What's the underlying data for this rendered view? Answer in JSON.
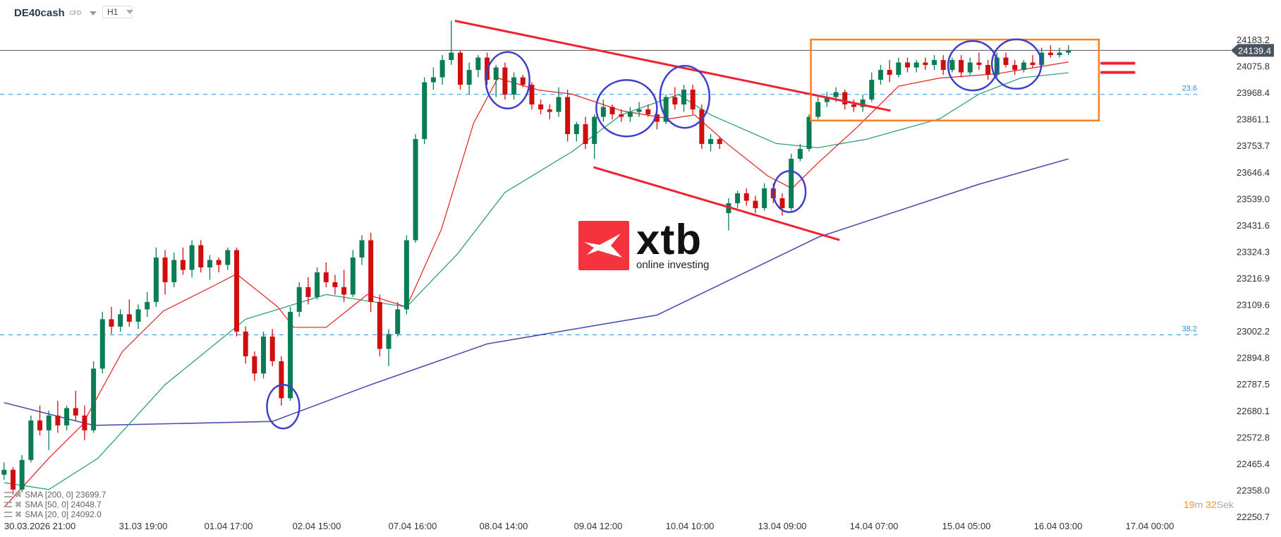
{
  "header": {
    "symbol": "DE40cash",
    "instrument_type": "CFD",
    "timeframe": "H1"
  },
  "legend": [
    {
      "label": "SMA [200, 0] 23699.7",
      "color": "#4a50b0"
    },
    {
      "label": "SMA [50, 0] 24048.7",
      "color": "#1f9a6e"
    },
    {
      "label": "SMA [20, 0] 24092.0",
      "color": "#e02020"
    }
  ],
  "timer": {
    "minutes": "19",
    "m_unit": "m",
    "seconds": "32",
    "s_unit": "Sek"
  },
  "logo": {
    "brand": "xtb",
    "tagline": "online investing"
  },
  "colors": {
    "up": "#0a7d55",
    "down": "#d10e0e",
    "price_line": "#555555",
    "price_label_bg": "#4a5560",
    "fib": "#2196f3",
    "annotation_red": "#ee2233",
    "circle": "#3f3fcc",
    "box": "#ff7f1e"
  },
  "chart_data": {
    "type": "candlestick",
    "symbol": "DE40cash",
    "ylim": [
      22250.7,
      24183.2
    ],
    "y_ticks": [
      "24183.2",
      "24075.8",
      "23968.4",
      "23861.1",
      "23753.7",
      "23646.4",
      "23539.0",
      "23431.6",
      "23324.3",
      "23216.9",
      "23109.6",
      "23002.2",
      "22894.8",
      "22787.5",
      "22680.1",
      "22572.8",
      "22465.4",
      "22358.0",
      "22250.7"
    ],
    "x_ticks": [
      "30.03.2026 21:00",
      "31.03 19:00",
      "01.04 17:00",
      "02.04 15:00",
      "07.04 16:00",
      "08.04 14:00",
      "09.04 12:00",
      "10.04 10:00",
      "13.04 09:00",
      "14.04 07:00",
      "15.04 05:00",
      "16.04 03:00",
      "17.04 00:00"
    ],
    "current_price": "24139.4",
    "candles_ohlc": [
      [
        22420,
        22470,
        22400,
        22440
      ],
      [
        22440,
        22450,
        22340,
        22360
      ],
      [
        22360,
        22500,
        22350,
        22480
      ],
      [
        22480,
        22660,
        22470,
        22640
      ],
      [
        22640,
        22700,
        22580,
        22600
      ],
      [
        22600,
        22680,
        22520,
        22660
      ],
      [
        22660,
        22720,
        22590,
        22620
      ],
      [
        22620,
        22700,
        22600,
        22690
      ],
      [
        22690,
        22760,
        22640,
        22660
      ],
      [
        22660,
        22700,
        22560,
        22600
      ],
      [
        22600,
        22880,
        22590,
        22850
      ],
      [
        22850,
        23080,
        22830,
        23050
      ],
      [
        23050,
        23100,
        22990,
        23020
      ],
      [
        23020,
        23090,
        23000,
        23070
      ],
      [
        23070,
        23130,
        23020,
        23040
      ],
      [
        23040,
        23110,
        23010,
        23090
      ],
      [
        23090,
        23160,
        23060,
        23120
      ],
      [
        23120,
        23340,
        23100,
        23300
      ],
      [
        23300,
        23330,
        23150,
        23200
      ],
      [
        23200,
        23320,
        23180,
        23290
      ],
      [
        23290,
        23340,
        23230,
        23250
      ],
      [
        23250,
        23370,
        23220,
        23350
      ],
      [
        23350,
        23370,
        23240,
        23260
      ],
      [
        23260,
        23310,
        23210,
        23290
      ],
      [
        23290,
        23300,
        23240,
        23270
      ],
      [
        23270,
        23340,
        23250,
        23330
      ],
      [
        23330,
        23340,
        22980,
        23000
      ],
      [
        23000,
        23020,
        22870,
        22900
      ],
      [
        22900,
        22920,
        22800,
        22830
      ],
      [
        22830,
        23000,
        22810,
        22980
      ],
      [
        22980,
        23010,
        22860,
        22880
      ],
      [
        22880,
        22900,
        22700,
        22730
      ],
      [
        22730,
        23100,
        22720,
        23080
      ],
      [
        23080,
        23200,
        23060,
        23180
      ],
      [
        23180,
        23220,
        23110,
        23140
      ],
      [
        23140,
        23260,
        23130,
        23240
      ],
      [
        23240,
        23280,
        23180,
        23200
      ],
      [
        23200,
        23230,
        23150,
        23180
      ],
      [
        23180,
        23250,
        23120,
        23150
      ],
      [
        23150,
        23330,
        23140,
        23300
      ],
      [
        23300,
        23390,
        23270,
        23370
      ],
      [
        23370,
        23400,
        23080,
        23120
      ],
      [
        23120,
        23150,
        22900,
        22930
      ],
      [
        22930,
        23010,
        22860,
        22990
      ],
      [
        22990,
        23120,
        22980,
        23090
      ],
      [
        23090,
        23390,
        23070,
        23370
      ],
      [
        23370,
        23800,
        23360,
        23780
      ],
      [
        23780,
        24030,
        23760,
        24010
      ],
      [
        24010,
        24070,
        23980,
        24030
      ],
      [
        24030,
        24120,
        24000,
        24100
      ],
      [
        24100,
        24260,
        24080,
        24130
      ],
      [
        24130,
        24140,
        23980,
        24000
      ],
      [
        24000,
        24090,
        23960,
        24060
      ],
      [
        24060,
        24120,
        24030,
        24110
      ],
      [
        24110,
        24130,
        24000,
        24020
      ],
      [
        24020,
        24080,
        23950,
        24070
      ],
      [
        24070,
        24090,
        23940,
        23960
      ],
      [
        23960,
        24050,
        23940,
        24030
      ],
      [
        24030,
        24040,
        23990,
        24000
      ],
      [
        24000,
        24010,
        23900,
        23920
      ],
      [
        23920,
        23940,
        23880,
        23900
      ],
      [
        23900,
        23920,
        23860,
        23890
      ],
      [
        23890,
        23990,
        23870,
        23950
      ],
      [
        23950,
        23980,
        23770,
        23800
      ],
      [
        23800,
        23850,
        23770,
        23840
      ],
      [
        23840,
        23870,
        23740,
        23760
      ],
      [
        23760,
        23880,
        23700,
        23870
      ],
      [
        23870,
        23940,
        23850,
        23910
      ],
      [
        23910,
        23920,
        23860,
        23880
      ],
      [
        23880,
        23900,
        23850,
        23870
      ],
      [
        23870,
        23910,
        23850,
        23890
      ],
      [
        23890,
        23930,
        23870,
        23900
      ],
      [
        23900,
        23920,
        23870,
        23880
      ],
      [
        23880,
        23900,
        23820,
        23850
      ],
      [
        23850,
        23960,
        23840,
        23950
      ],
      [
        23950,
        23990,
        23900,
        23920
      ],
      [
        23920,
        24000,
        23890,
        23980
      ],
      [
        23980,
        24000,
        23880,
        23900
      ],
      [
        23900,
        23920,
        23740,
        23760
      ],
      [
        23760,
        23800,
        23730,
        23780
      ],
      [
        23780,
        23790,
        23740,
        23760
      ],
      [
        23480,
        23540,
        23410,
        23520
      ],
      [
        23520,
        23570,
        23500,
        23560
      ],
      [
        23560,
        23580,
        23510,
        23530
      ],
      [
        23530,
        23550,
        23480,
        23500
      ],
      [
        23500,
        23600,
        23490,
        23580
      ],
      [
        23580,
        23600,
        23520,
        23540
      ],
      [
        23540,
        23560,
        23470,
        23500
      ],
      [
        23500,
        23720,
        23490,
        23700
      ],
      [
        23700,
        23760,
        23690,
        23740
      ],
      [
        23740,
        23880,
        23730,
        23870
      ],
      [
        23870,
        23950,
        23860,
        23930
      ],
      [
        23930,
        23970,
        23910,
        23950
      ],
      [
        23950,
        23990,
        23930,
        23970
      ],
      [
        23970,
        23980,
        23900,
        23920
      ],
      [
        23920,
        23940,
        23890,
        23910
      ],
      [
        23910,
        23960,
        23890,
        23940
      ],
      [
        23940,
        24050,
        23930,
        24020
      ],
      [
        24020,
        24080,
        24000,
        24060
      ],
      [
        24060,
        24100,
        24010,
        24040
      ],
      [
        24040,
        24110,
        24030,
        24090
      ],
      [
        24090,
        24110,
        24050,
        24070
      ],
      [
        24070,
        24100,
        24050,
        24090
      ],
      [
        24090,
        24110,
        24060,
        24080
      ],
      [
        24080,
        24120,
        24060,
        24100
      ],
      [
        24100,
        24120,
        24040,
        24060
      ],
      [
        24060,
        24110,
        24050,
        24100
      ],
      [
        24100,
        24120,
        24030,
        24050
      ],
      [
        24050,
        24110,
        24040,
        24090
      ],
      [
        24090,
        24130,
        24060,
        24080
      ],
      [
        24080,
        24100,
        24020,
        24040
      ],
      [
        24040,
        24130,
        24030,
        24110
      ],
      [
        24110,
        24130,
        24070,
        24080
      ],
      [
        24080,
        24100,
        24040,
        24060
      ],
      [
        24060,
        24100,
        24050,
        24090
      ],
      [
        24090,
        24120,
        24070,
        24080
      ],
      [
        24080,
        24150,
        24070,
        24130
      ],
      [
        24130,
        24160,
        24110,
        24120
      ],
      [
        24120,
        24150,
        24110,
        24130
      ],
      [
        24130,
        24160,
        24120,
        24139.4
      ]
    ],
    "series": [
      {
        "name": "SMA [200, 0]",
        "color": "#4a50b0",
        "points": [
          [
            0,
            22712
          ],
          [
            10,
            22620
          ],
          [
            30,
            22636
          ],
          [
            41,
            22785
          ],
          [
            54,
            22950
          ],
          [
            73,
            23067
          ],
          [
            91,
            23382
          ],
          [
            109,
            23597
          ],
          [
            119,
            23699.7
          ]
        ]
      },
      {
        "name": "SMA [50, 0]",
        "color": "#1f9a6e",
        "points": [
          [
            0,
            22388
          ],
          [
            5,
            22360
          ],
          [
            10.5,
            22487
          ],
          [
            18,
            22785
          ],
          [
            27,
            23050
          ],
          [
            36,
            23150
          ],
          [
            45,
            23100
          ],
          [
            50.7,
            23315
          ],
          [
            56,
            23564
          ],
          [
            63.5,
            23729
          ],
          [
            69,
            23878
          ],
          [
            75.4,
            23960
          ],
          [
            79,
            23878
          ],
          [
            86.3,
            23762
          ],
          [
            91,
            23745
          ],
          [
            96.4,
            23779
          ],
          [
            104.6,
            23862
          ],
          [
            109,
            23962
          ],
          [
            113.7,
            24028
          ],
          [
            119,
            24048.7
          ]
        ]
      },
      {
        "name": "SMA [20, 0]",
        "color": "#e02020",
        "points": [
          [
            0,
            22288
          ],
          [
            5,
            22487
          ],
          [
            8.7,
            22620
          ],
          [
            13.2,
            22918
          ],
          [
            17.8,
            23083
          ],
          [
            23.3,
            23183
          ],
          [
            26,
            23233
          ],
          [
            30.6,
            23100
          ],
          [
            32.4,
            23017
          ],
          [
            36,
            23017
          ],
          [
            40.6,
            23150
          ],
          [
            45,
            23100
          ],
          [
            48.9,
            23415
          ],
          [
            52.5,
            23845
          ],
          [
            55.2,
            24027
          ],
          [
            59.8,
            23978
          ],
          [
            63.5,
            23962
          ],
          [
            69,
            23895
          ],
          [
            74.4,
            23862
          ],
          [
            77.2,
            23878
          ],
          [
            80.8,
            23762
          ],
          [
            85.4,
            23630
          ],
          [
            88.1,
            23580
          ],
          [
            90.9,
            23680
          ],
          [
            95.4,
            23829
          ],
          [
            100,
            23994
          ],
          [
            104.6,
            24027
          ],
          [
            110.9,
            24044
          ],
          [
            119,
            24092
          ]
        ]
      }
    ],
    "fib_levels": [
      {
        "label": "23.6",
        "price": 23961
      },
      {
        "label": "38.2",
        "price": 22987
      }
    ],
    "annotations": {
      "trendlines": [
        [
          [
            50.4,
            24259
          ],
          [
            99.1,
            23895
          ]
        ],
        [
          [
            65.9,
            23666
          ],
          [
            93.4,
            23371
          ]
        ]
      ],
      "box": {
        "from": [
          90.2,
          24183
        ],
        "to": [
          122.4,
          23855
        ]
      },
      "equal_marks": [
        [
          [
            122.4,
            24087
          ],
          [
            126,
            24087
          ]
        ],
        [
          [
            122.4,
            24050
          ],
          [
            126,
            24050
          ]
        ]
      ],
      "circles": [
        [
          31.2,
          22696
        ],
        [
          56.3,
          24018
        ],
        [
          69.6,
          23905
        ],
        [
          76.1,
          23951
        ],
        [
          87.8,
          23567
        ],
        [
          108.3,
          24077
        ],
        [
          113.2,
          24084
        ]
      ]
    },
    "grid": false
  }
}
